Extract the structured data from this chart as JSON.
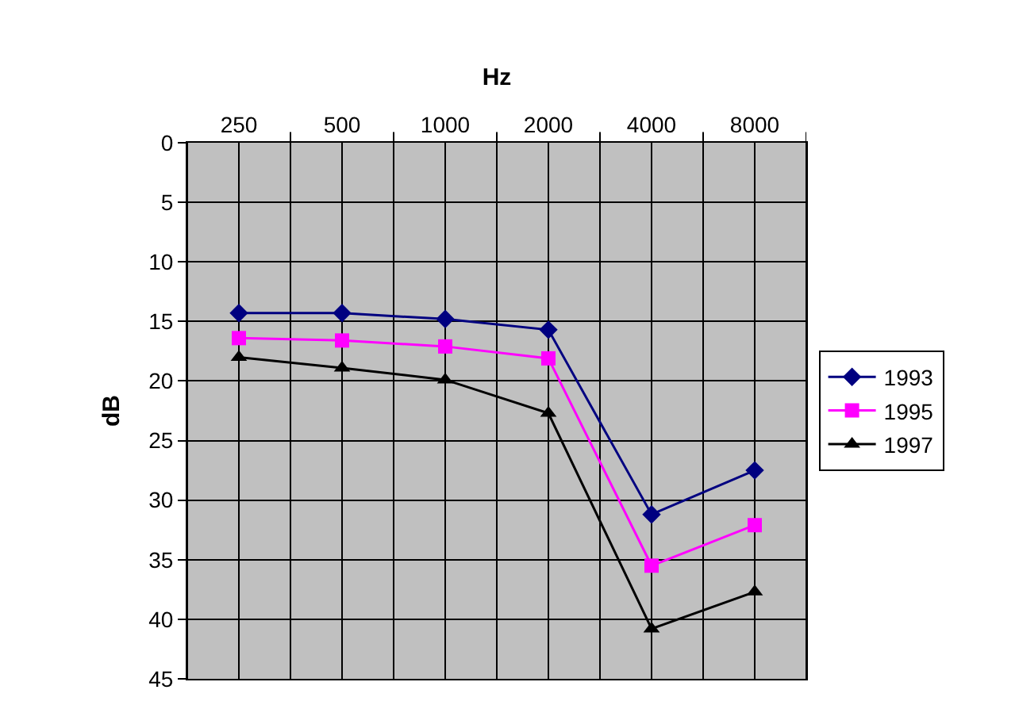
{
  "chart_data": {
    "type": "line",
    "xlabel": "Hz",
    "ylabel": "dB",
    "categories": [
      "250",
      "500",
      "1000",
      "2000",
      "4000",
      "8000"
    ],
    "series": [
      {
        "name": "1993",
        "color": "#000080",
        "marker": "diamond",
        "values": [
          14.3,
          14.3,
          14.8,
          15.7,
          31.2,
          27.5
        ]
      },
      {
        "name": "1995",
        "color": "#ff00ff",
        "marker": "square",
        "values": [
          16.4,
          16.6,
          17.1,
          18.1,
          35.5,
          32.1
        ]
      },
      {
        "name": "1997",
        "color": "#000000",
        "marker": "triangle",
        "values": [
          18.0,
          18.9,
          19.9,
          22.7,
          40.8,
          37.7
        ]
      }
    ],
    "ylim": [
      45,
      0
    ],
    "yticks": [
      0,
      5,
      10,
      15,
      20,
      25,
      30,
      35,
      40,
      45
    ],
    "grid": true,
    "legend": "right",
    "line_style": "solid"
  }
}
